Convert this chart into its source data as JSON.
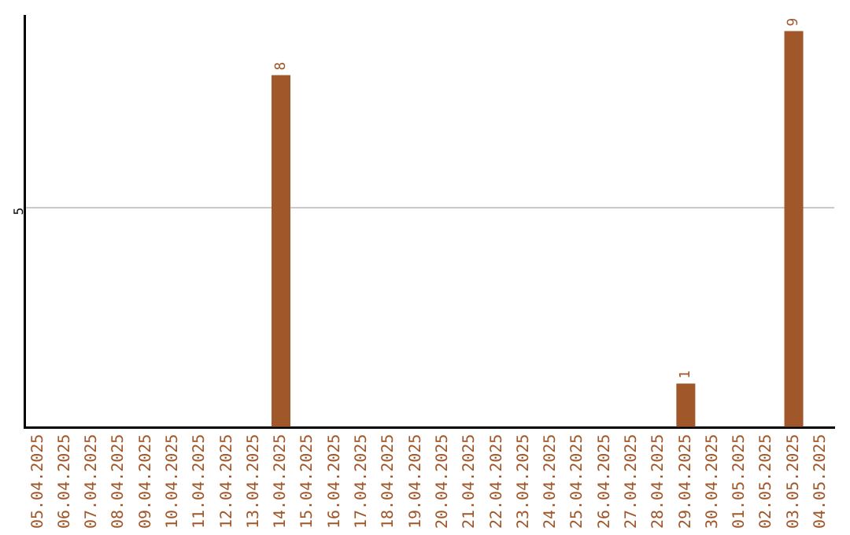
{
  "chart_data": {
    "type": "bar",
    "categories": [
      "05.04.2025",
      "06.04.2025",
      "07.04.2025",
      "08.04.2025",
      "09.04.2025",
      "10.04.2025",
      "11.04.2025",
      "12.04.2025",
      "13.04.2025",
      "14.04.2025",
      "15.04.2025",
      "16.04.2025",
      "17.04.2025",
      "18.04.2025",
      "19.04.2025",
      "20.04.2025",
      "21.04.2025",
      "22.04.2025",
      "23.04.2025",
      "24.04.2025",
      "25.04.2025",
      "26.04.2025",
      "27.04.2025",
      "28.04.2025",
      "29.04.2025",
      "30.04.2025",
      "01.05.2025",
      "02.05.2025",
      "03.05.2025",
      "04.05.2025"
    ],
    "values": [
      0,
      0,
      0,
      0,
      0,
      0,
      0,
      0,
      0,
      8,
      0,
      0,
      0,
      0,
      0,
      0,
      0,
      0,
      0,
      0,
      0,
      0,
      0,
      0,
      1,
      0,
      0,
      0,
      9,
      0
    ],
    "value_labels": [
      null,
      null,
      null,
      null,
      null,
      null,
      null,
      null,
      null,
      "8",
      null,
      null,
      null,
      null,
      null,
      null,
      null,
      null,
      null,
      null,
      null,
      null,
      null,
      null,
      "1",
      null,
      null,
      null,
      "9",
      null
    ],
    "color": "#a0572a",
    "ylim": [
      0,
      9.35
    ],
    "yticks": [
      {
        "value": 0,
        "label": null
      },
      5
    ],
    "grid": "y",
    "legend": false
  }
}
